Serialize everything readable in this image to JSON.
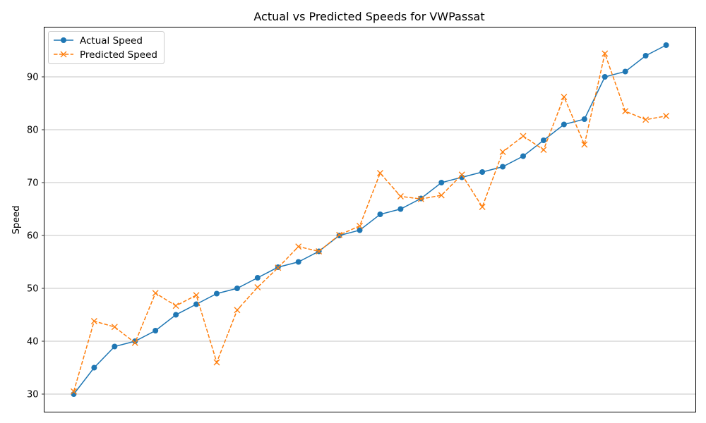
{
  "chart_data": {
    "type": "line",
    "title": "Actual vs Predicted Speeds for VWPassat",
    "xlabel": "",
    "ylabel": "Speed",
    "ylim": [
      26.6,
      99.4
    ],
    "yticks": [
      30,
      40,
      50,
      60,
      70,
      80,
      90
    ],
    "grid": "y",
    "legend_position": "top-left",
    "x": [
      0,
      1,
      2,
      3,
      4,
      5,
      6,
      7,
      8,
      9,
      10,
      11,
      12,
      13,
      14,
      15,
      16,
      17,
      18,
      19,
      20,
      21,
      22,
      23,
      24,
      25,
      26,
      27,
      28,
      29
    ],
    "series": [
      {
        "name": "Actual Speed",
        "color": "#1f77b4",
        "marker": "circle",
        "line_style": "solid",
        "values": [
          30,
          35,
          39,
          40,
          42,
          45,
          47,
          49,
          50,
          52,
          54,
          55,
          57,
          60,
          61,
          64,
          65,
          67,
          70,
          71,
          72,
          73,
          75,
          78,
          81,
          82,
          90,
          91,
          94,
          96
        ]
      },
      {
        "name": "Predicted Speed",
        "color": "#ff7f0e",
        "marker": "x",
        "line_style": "dashed",
        "values": [
          30.5,
          43.8,
          42.7,
          39.7,
          49.1,
          46.7,
          48.7,
          36.0,
          45.9,
          50.2,
          53.9,
          57.9,
          57.0,
          60.1,
          61.8,
          71.8,
          67.4,
          66.9,
          67.6,
          71.5,
          65.4,
          75.8,
          78.8,
          76.2,
          86.2,
          77.2,
          94.4,
          83.5,
          81.9,
          82.6
        ]
      }
    ]
  }
}
